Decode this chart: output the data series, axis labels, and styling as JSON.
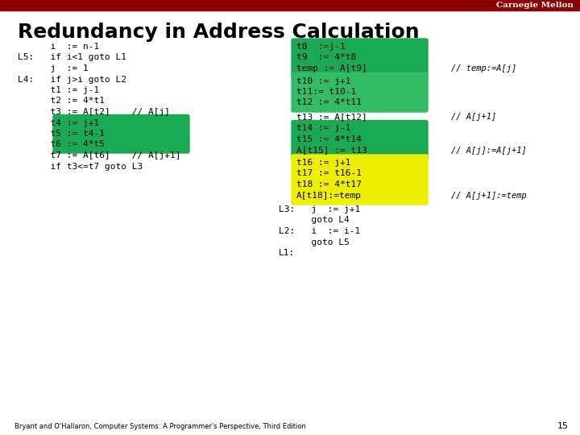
{
  "title": "Redundancy in Address Calculation",
  "header_color": "#8b0000",
  "header_text": "Carnegie Mellon",
  "bg_color": "#ffffff",
  "title_color": "#000000",
  "title_fontsize": 18,
  "footer_text": "Bryant and O'Hallaron, Computer Systems: A Programmer's Perspective, Third Edition",
  "footer_page": "15",
  "left_lines": [
    [
      "      i  := n-1",
      false
    ],
    [
      "L5:   if i<1 goto L1",
      false
    ],
    [
      "      j  := 1",
      false
    ],
    [
      "L4:   if j>i goto L2",
      false
    ],
    [
      "      t1 := j-1",
      false
    ],
    [
      "      t2 := 4*t1",
      false
    ],
    [
      "      t3 := A[t2]    // A[j]",
      false
    ],
    [
      "      t4 := j+1",
      true
    ],
    [
      "      t5 := t4-1",
      true
    ],
    [
      "      t6 := 4*t5",
      true
    ],
    [
      "      t7 := A[t6]    // A[j+1]",
      false
    ],
    [
      "      if t3<=t7 goto L3",
      false
    ]
  ],
  "right_block1_lines": [
    "t8  :=j-1",
    "t9  := 4*t8",
    "temp := A[t9]"
  ],
  "right_block1_comment": "// temp:=A[j]",
  "right_block2_lines": [
    "t10 := j+1",
    "t11:= t10-1",
    "t12 := 4*t11"
  ],
  "right_t13_line": "t13 := A[t12]",
  "right_t13_comment": "// A[j+1]",
  "right_block3_lines": [
    "t14 := j-1",
    "t15 := 4*t14",
    "A[t15] := t13"
  ],
  "right_block3_comment": "// A[j]:=A[j+1]",
  "right_block4_lines": [
    "t16 := j+1",
    "t17 := t16-1",
    "t18 := 4*t17",
    "A[t18]:=temp"
  ],
  "right_block4_comment": "// A[j+1]:=temp",
  "right_bottom_lines": [
    "L3:   j  := j+1",
    "      goto L4",
    "L2:   i  := i-1",
    "      goto L5",
    "L1:"
  ],
  "green1": "#1aaa55",
  "green2": "#33bb66",
  "yellow": "#eeee00"
}
